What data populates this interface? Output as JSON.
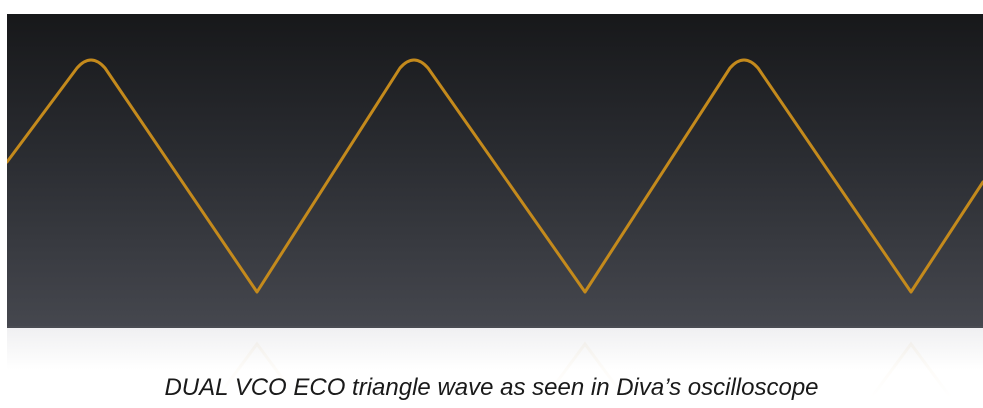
{
  "scope": {
    "waveform": "triangle",
    "trace_color": "#c48a1c",
    "background_top": "#17181a",
    "background_bottom": "#45474e"
  },
  "caption": {
    "text": "DUAL VCO ECO triangle wave as seen in Diva’s oscilloscope"
  }
}
